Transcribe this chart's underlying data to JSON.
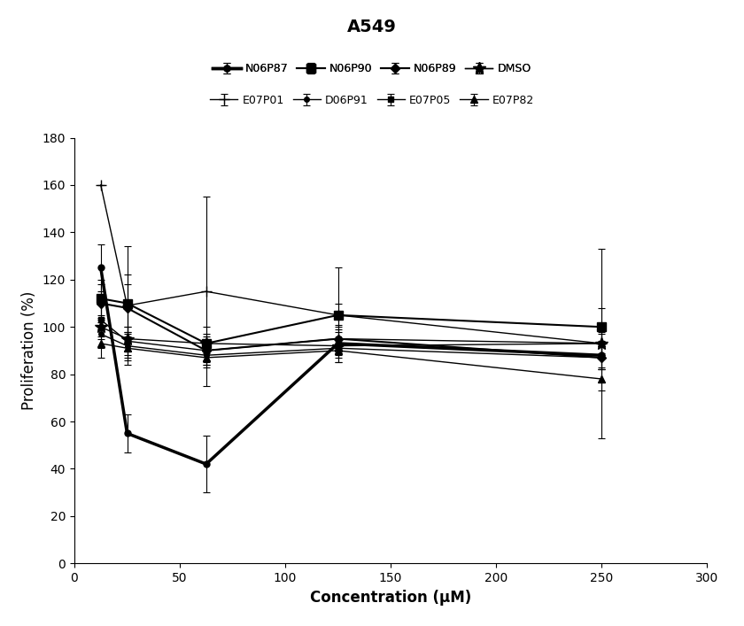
{
  "title": "A549",
  "xlabel": "Concentration (μM)",
  "ylabel": "Proliferation (%)",
  "xlim": [
    0,
    300
  ],
  "ylim": [
    0,
    180
  ],
  "xticks": [
    0,
    50,
    100,
    150,
    200,
    250,
    300
  ],
  "yticks": [
    0,
    20,
    40,
    60,
    80,
    100,
    120,
    140,
    160,
    180
  ],
  "x": [
    12.5,
    25,
    62.5,
    125,
    250
  ],
  "series": [
    {
      "label": "N06P87",
      "y": [
        125,
        55,
        42,
        93,
        88
      ],
      "yerr": [
        10,
        8,
        12,
        5,
        6
      ],
      "marker": "o",
      "linewidth": 2.5,
      "markersize": 5
    },
    {
      "label": "N06P90",
      "y": [
        112,
        110,
        93,
        105,
        100
      ],
      "yerr": [
        8,
        12,
        7,
        5,
        8
      ],
      "marker": "s",
      "linewidth": 1.5,
      "markersize": 7
    },
    {
      "label": "N06P89",
      "y": [
        110,
        108,
        90,
        95,
        87
      ],
      "yerr": [
        8,
        10,
        6,
        4,
        5
      ],
      "marker": "D",
      "linewidth": 1.5,
      "markersize": 5
    },
    {
      "label": "DMSO",
      "y": [
        100,
        95,
        93,
        92,
        93
      ],
      "yerr": [
        5,
        5,
        4,
        3,
        4
      ],
      "marker": "*",
      "linewidth": 1.0,
      "markersize": 10
    },
    {
      "label": "E07P01",
      "y": [
        160,
        109,
        115,
        105,
        93
      ],
      "yerr": [
        0,
        25,
        40,
        20,
        40
      ],
      "marker": "+",
      "linewidth": 1.0,
      "markersize": 9
    },
    {
      "label": "D06P91",
      "y": [
        97,
        92,
        88,
        91,
        87
      ],
      "yerr": [
        6,
        5,
        4,
        4,
        5
      ],
      "marker": "o",
      "linewidth": 1.0,
      "markersize": 4
    },
    {
      "label": "E07P05",
      "y": [
        103,
        94,
        90,
        95,
        93
      ],
      "yerr": [
        7,
        6,
        5,
        6,
        5
      ],
      "marker": "s",
      "linewidth": 1.0,
      "markersize": 4
    },
    {
      "label": "E07P82",
      "y": [
        93,
        91,
        87,
        90,
        78
      ],
      "yerr": [
        6,
        5,
        4,
        5,
        5
      ],
      "marker": "^",
      "linewidth": 1.0,
      "markersize": 6
    }
  ],
  "color": "#000000",
  "background_color": "#ffffff",
  "title_fontsize": 14,
  "axis_label_fontsize": 12,
  "tick_fontsize": 10,
  "legend_fontsize": 9
}
